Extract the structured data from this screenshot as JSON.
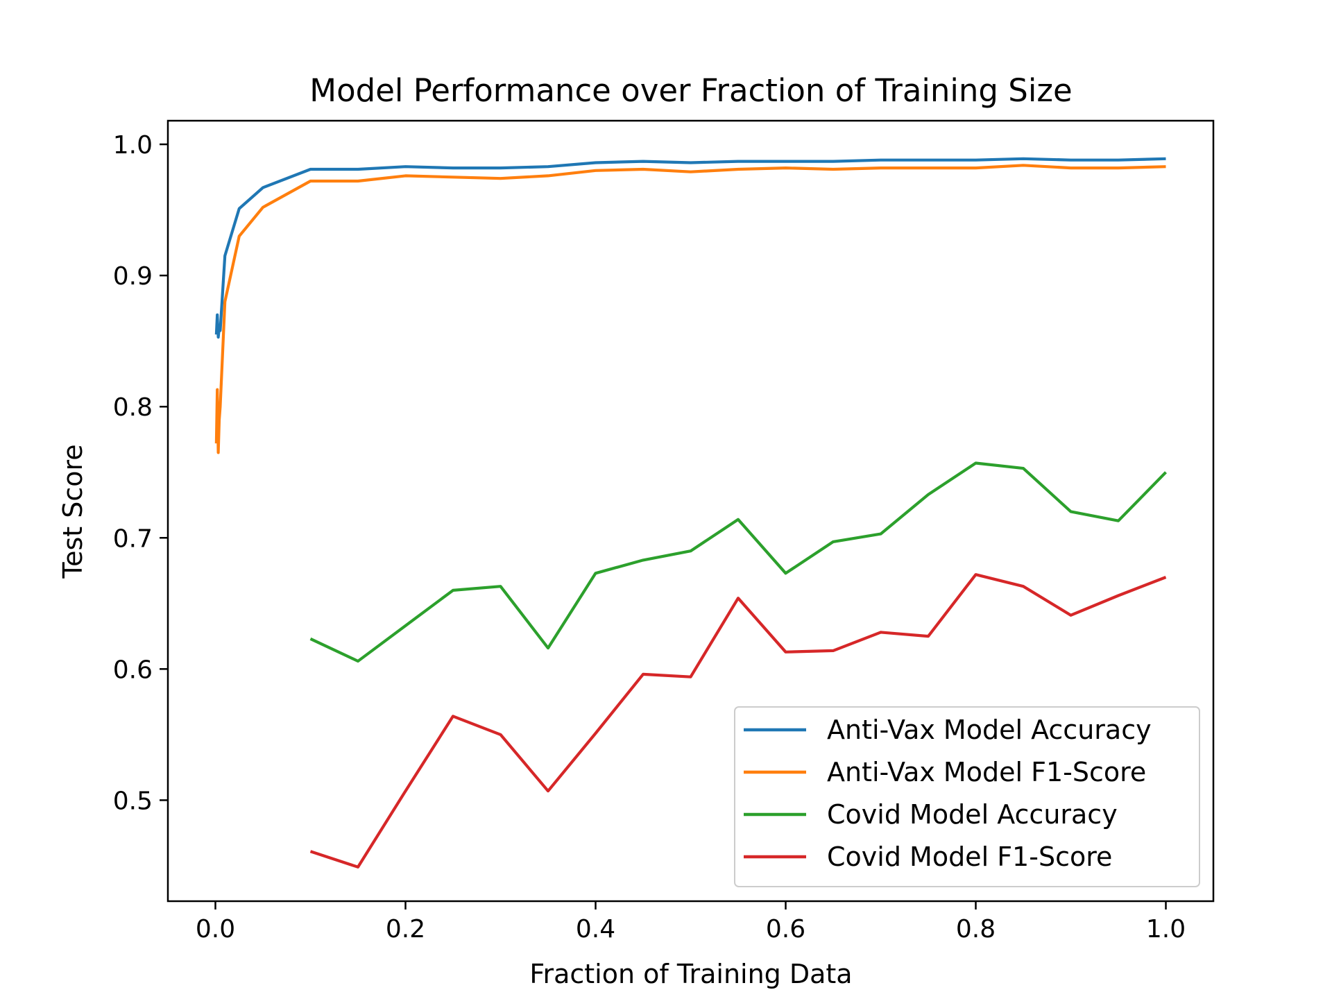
{
  "chart_data": {
    "type": "line",
    "title": "Model Performance over Fraction of Training Size",
    "xlabel": "Fraction of Training Data",
    "ylabel": "Test Score",
    "xlim": [
      -0.05,
      1.05
    ],
    "ylim": [
      0.423,
      1.018
    ],
    "xticks": [
      0.0,
      0.2,
      0.4,
      0.6,
      0.8,
      1.0
    ],
    "xtick_labels": [
      "0.0",
      "0.2",
      "0.4",
      "0.6",
      "0.8",
      "1.0"
    ],
    "yticks": [
      0.5,
      0.6,
      0.7,
      0.8,
      0.9,
      1.0
    ],
    "ytick_labels": [
      "0.5",
      "0.6",
      "0.7",
      "0.8",
      "0.9",
      "1.0"
    ],
    "grid": false,
    "legend_position": "lower right",
    "series": [
      {
        "name": "Anti-Vax Model Accuracy",
        "color": "#1f77b4",
        "x": [
          0.001,
          0.002,
          0.003,
          0.004,
          0.005,
          0.01,
          0.025,
          0.05,
          0.1,
          0.15,
          0.2,
          0.25,
          0.3,
          0.35,
          0.4,
          0.45,
          0.5,
          0.55,
          0.6,
          0.65,
          0.7,
          0.75,
          0.8,
          0.85,
          0.9,
          0.95,
          1.0
        ],
        "y": [
          0.855,
          0.87,
          0.853,
          0.86,
          0.858,
          0.915,
          0.951,
          0.967,
          0.981,
          0.981,
          0.983,
          0.982,
          0.982,
          0.983,
          0.986,
          0.987,
          0.986,
          0.987,
          0.987,
          0.987,
          0.988,
          0.988,
          0.988,
          0.989,
          0.988,
          0.988,
          0.989
        ]
      },
      {
        "name": "Anti-Vax Model F1-Score",
        "color": "#ff7f0e",
        "x": [
          0.001,
          0.002,
          0.003,
          0.004,
          0.005,
          0.01,
          0.025,
          0.05,
          0.1,
          0.15,
          0.2,
          0.25,
          0.3,
          0.35,
          0.4,
          0.45,
          0.5,
          0.55,
          0.6,
          0.65,
          0.7,
          0.75,
          0.8,
          0.85,
          0.9,
          0.95,
          1.0
        ],
        "y": [
          0.772,
          0.813,
          0.765,
          0.79,
          0.8,
          0.88,
          0.93,
          0.952,
          0.972,
          0.972,
          0.976,
          0.975,
          0.974,
          0.976,
          0.98,
          0.981,
          0.979,
          0.981,
          0.982,
          0.981,
          0.982,
          0.982,
          0.982,
          0.984,
          0.982,
          0.982,
          0.983
        ]
      },
      {
        "name": "Covid Model Accuracy",
        "color": "#2ca02c",
        "x": [
          0.1,
          0.15,
          0.2,
          0.25,
          0.3,
          0.35,
          0.4,
          0.45,
          0.5,
          0.55,
          0.6,
          0.65,
          0.7,
          0.75,
          0.8,
          0.85,
          0.9,
          0.95,
          1.0
        ],
        "y": [
          0.623,
          0.606,
          0.633,
          0.66,
          0.663,
          0.616,
          0.673,
          0.683,
          0.69,
          0.714,
          0.673,
          0.697,
          0.703,
          0.733,
          0.757,
          0.753,
          0.72,
          0.713,
          0.75
        ]
      },
      {
        "name": "Covid Model F1-Score",
        "color": "#d62728",
        "x": [
          0.1,
          0.15,
          0.2,
          0.25,
          0.3,
          0.35,
          0.4,
          0.45,
          0.5,
          0.55,
          0.6,
          0.65,
          0.7,
          0.75,
          0.8,
          0.85,
          0.9,
          0.95,
          1.0
        ],
        "y": [
          0.461,
          0.449,
          0.507,
          0.564,
          0.55,
          0.507,
          0.551,
          0.596,
          0.594,
          0.654,
          0.613,
          0.614,
          0.628,
          0.625,
          0.672,
          0.663,
          0.641,
          0.656,
          0.67
        ]
      }
    ]
  }
}
